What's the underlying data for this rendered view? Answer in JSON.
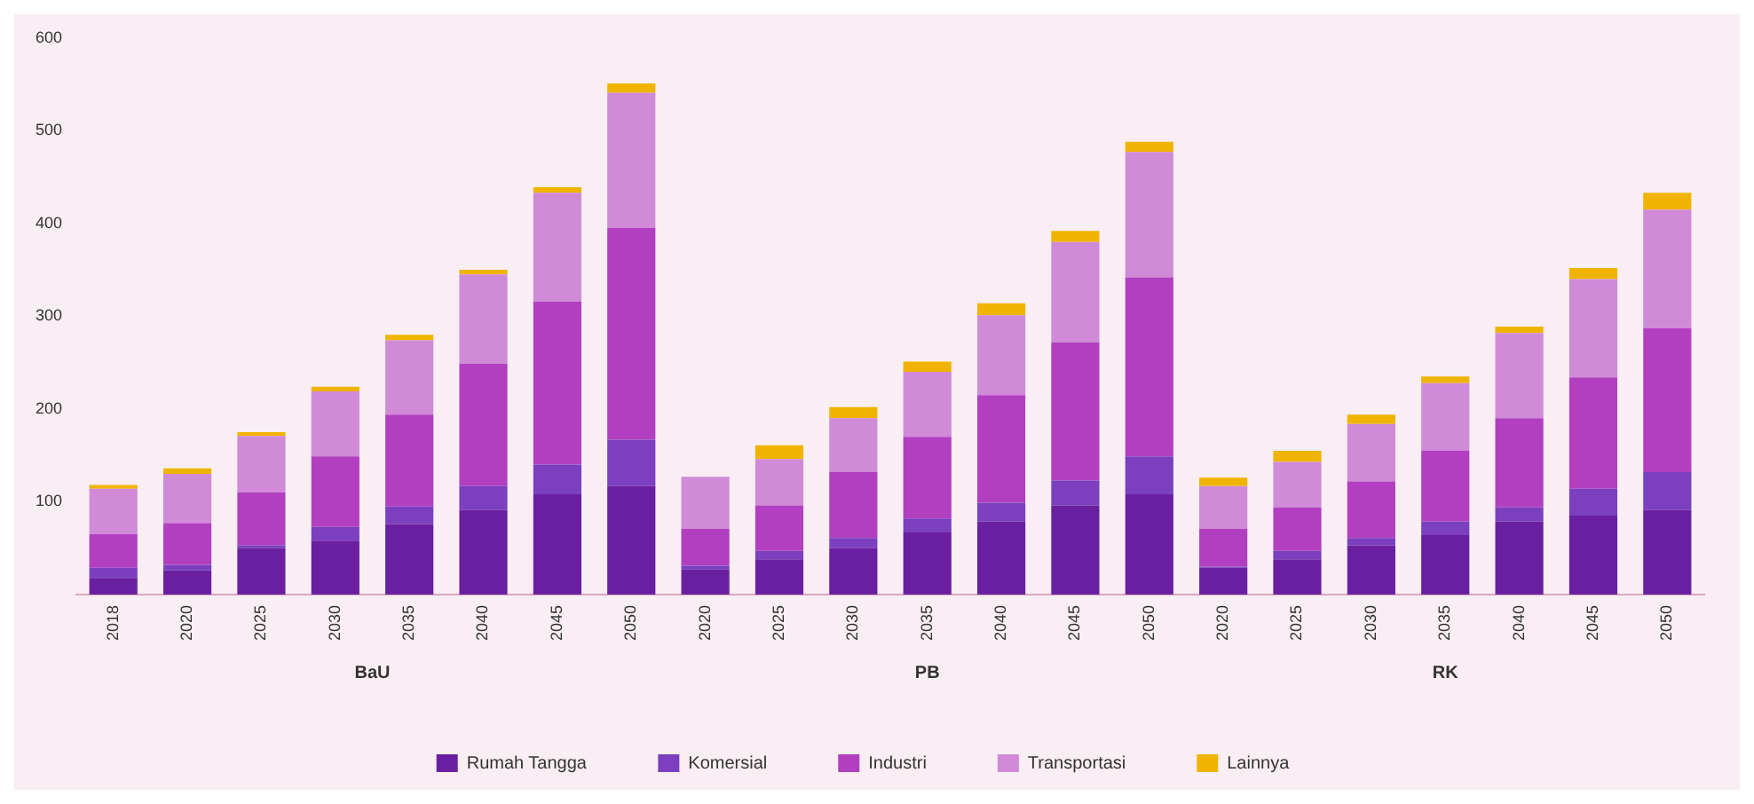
{
  "chart_data": {
    "type": "bar",
    "stacked": true,
    "categories": [
      "2018",
      "2020",
      "2025",
      "2030",
      "2035",
      "2040",
      "2045",
      "2050",
      "2020",
      "2025",
      "2030",
      "2035",
      "2040",
      "2045",
      "2050",
      "2020",
      "2025",
      "2030",
      "2035",
      "2040",
      "2045",
      "2050"
    ],
    "annotations": [
      "BaU",
      "PB",
      "RK"
    ],
    "series": [
      {
        "name": "Rumah Tangga",
        "color": "#6a1fa0",
        "values": [
          18,
          26,
          50,
          58,
          76,
          91,
          108,
          117,
          27,
          38,
          50,
          67,
          79,
          96,
          108,
          29,
          38,
          53,
          64,
          79,
          85,
          91
        ]
      },
      {
        "name": "Komersial",
        "color": "#7b3fbf",
        "values": [
          11,
          6,
          3,
          15,
          19,
          26,
          32,
          50,
          4,
          9,
          11,
          15,
          20,
          27,
          41,
          1,
          9,
          8,
          15,
          15,
          29,
          41
        ]
      },
      {
        "name": "Industri",
        "color": "#b23fc0",
        "values": [
          36,
          45,
          57,
          76,
          99,
          132,
          176,
          228,
          40,
          49,
          71,
          88,
          116,
          149,
          193,
          41,
          47,
          61,
          76,
          96,
          120,
          155
        ]
      },
      {
        "name": "Transportasi",
        "color": "#d08ad8",
        "values": [
          49,
          53,
          61,
          70,
          80,
          96,
          117,
          146,
          56,
          50,
          58,
          70,
          86,
          108,
          135,
          46,
          49,
          62,
          73,
          92,
          106,
          128
        ]
      },
      {
        "name": "Lainnya",
        "color": "#f0b400",
        "values": [
          4,
          6,
          4,
          5,
          6,
          5,
          6,
          10,
          0,
          15,
          12,
          11,
          13,
          12,
          11,
          9,
          12,
          10,
          7,
          7,
          12,
          18
        ]
      }
    ],
    "ylim": [
      0,
      600
    ],
    "yticks": [
      100,
      200,
      300,
      400,
      500,
      600
    ],
    "grid": false,
    "legend": "bottom"
  }
}
